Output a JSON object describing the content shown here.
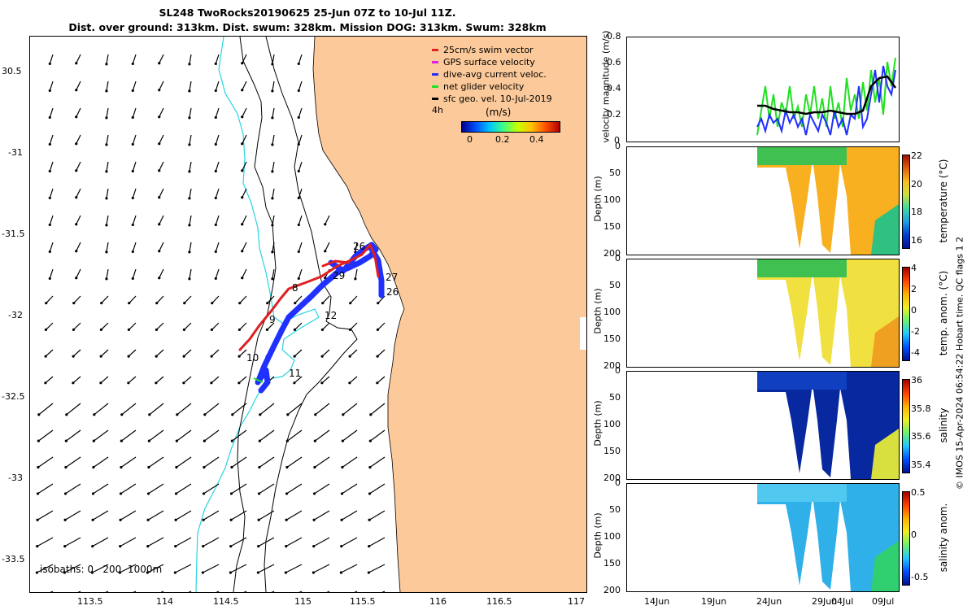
{
  "title": {
    "line1": "SL248 TwoRocks20190625 25-Jun 07Z to 10-Jul 11Z.",
    "line2": "Dist. over ground: 313km. Dist. swum: 328km. Mission DOG: 313km. Swum: 328km"
  },
  "map": {
    "lat_ticks": [
      "30.5",
      "-31",
      "-31.5",
      "-32",
      "-32.5",
      "-33",
      "-33.5"
    ],
    "lon_ticks": [
      "113.5",
      "114",
      "114.5",
      "115",
      "115.5",
      "116",
      "116.5",
      "117"
    ],
    "legend": [
      {
        "label": "25cm/s swim vector",
        "color": "#e02020"
      },
      {
        "label": "GPS surface velocity",
        "color": "#e020e0"
      },
      {
        "label": "dive-avg current veloc.",
        "color": "#2030ff"
      },
      {
        "label": "net glider velocity",
        "color": "#20e020"
      },
      {
        "label": "sfc geo. vel. 10-Jul-2019",
        "color": "#000000"
      }
    ],
    "colorbar": {
      "label": "(m/s)",
      "corner_text": "4h",
      "ticks": [
        "0",
        "0.2",
        "0.4"
      ]
    },
    "day_labels": [
      "26",
      "27",
      "26",
      "29",
      "9",
      "12",
      "10",
      "11",
      "8"
    ],
    "isobaths_label": "isobaths: 0   200  1000m",
    "land_color": "#fbc99a",
    "coast_cyan": "#2ad4e0"
  },
  "right_panels": {
    "velocity": {
      "ylabel": "velocity magnitude (m/s)",
      "ticks": [
        "0.8",
        "0.6",
        "0.4",
        "0.2",
        "0"
      ]
    },
    "temperature": {
      "ylabel": "Depth (m)",
      "cblabel": "temperature (°C)",
      "depth_ticks": [
        "0",
        "50",
        "100",
        "150",
        "200"
      ],
      "cb_ticks": [
        "22",
        "20",
        "18",
        "16"
      ]
    },
    "temp_anom": {
      "ylabel": "Depth (m)",
      "cblabel": "temp. anom. (°C)",
      "depth_ticks": [
        "0",
        "50",
        "100",
        "150",
        "200"
      ],
      "cb_ticks": [
        "4",
        "2",
        "0",
        "-2",
        "-4"
      ]
    },
    "salinity": {
      "ylabel": "Depth (m)",
      "cblabel": "salinity",
      "depth_ticks": [
        "0",
        "50",
        "100",
        "150",
        "200"
      ],
      "cb_ticks": [
        "36",
        "35.8",
        "35.6",
        "35.4"
      ]
    },
    "sal_anom": {
      "ylabel": "Depth (m)",
      "cblabel": "salinity anom.",
      "depth_ticks": [
        "0",
        "50",
        "100",
        "150",
        "200"
      ],
      "cb_ticks": [
        "0.5",
        "0",
        "-0.5"
      ]
    },
    "date_ticks": [
      "14Jun",
      "19Jun",
      "24Jun",
      "29Jun",
      "04Jul",
      "09Jul"
    ],
    "qc_label": "temp. anom. (°C)   Hobart time. QC flags 1  2",
    "footer": "© IMOS 15-Apr-2024 06:54:22 Hobart time. QC flags 1  2"
  }
}
